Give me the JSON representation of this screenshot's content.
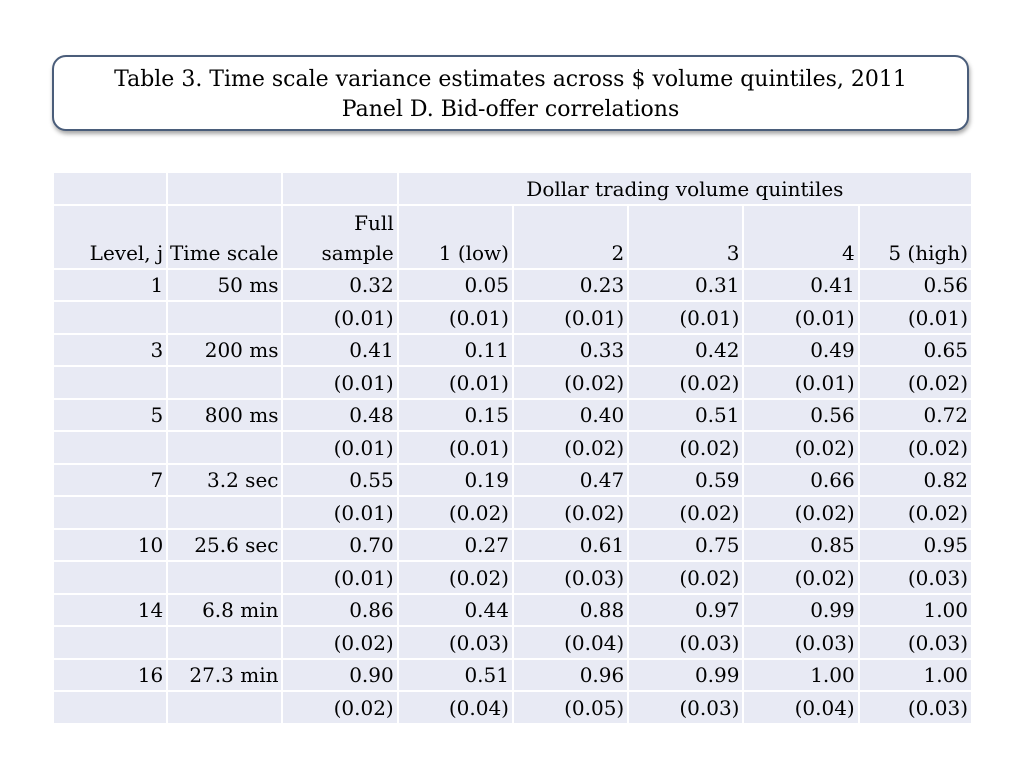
{
  "title": {
    "line1": "Table 3. Time scale variance estimates across $ volume quintiles, 2011",
    "line2": "Panel D. Bid-offer correlations"
  },
  "table": {
    "group_header": "Dollar trading volume quintiles",
    "columns": {
      "level": "Level, j",
      "time": "Time scale",
      "full": "Full sample",
      "q1": "1 (low)",
      "q2": "2",
      "q3": "3",
      "q4": "4",
      "q5": "5 (high)"
    },
    "rows": [
      {
        "level": "1",
        "time": "50 ms",
        "values": [
          "0.32",
          "0.05",
          "0.23",
          "0.31",
          "0.41",
          "0.56"
        ],
        "se": [
          "(0.01)",
          "(0.01)",
          "(0.01)",
          "(0.01)",
          "(0.01)",
          "(0.01)"
        ]
      },
      {
        "level": "3",
        "time": "200 ms",
        "values": [
          "0.41",
          "0.11",
          "0.33",
          "0.42",
          "0.49",
          "0.65"
        ],
        "se": [
          "(0.01)",
          "(0.01)",
          "(0.02)",
          "(0.02)",
          "(0.01)",
          "(0.02)"
        ]
      },
      {
        "level": "5",
        "time": "800 ms",
        "values": [
          "0.48",
          "0.15",
          "0.40",
          "0.51",
          "0.56",
          "0.72"
        ],
        "se": [
          "(0.01)",
          "(0.01)",
          "(0.02)",
          "(0.02)",
          "(0.02)",
          "(0.02)"
        ]
      },
      {
        "level": "7",
        "time": "3.2 sec",
        "values": [
          "0.55",
          "0.19",
          "0.47",
          "0.59",
          "0.66",
          "0.82"
        ],
        "se": [
          "(0.01)",
          "(0.02)",
          "(0.02)",
          "(0.02)",
          "(0.02)",
          "(0.02)"
        ]
      },
      {
        "level": "10",
        "time": "25.6 sec",
        "values": [
          "0.70",
          "0.27",
          "0.61",
          "0.75",
          "0.85",
          "0.95"
        ],
        "se": [
          "(0.01)",
          "(0.02)",
          "(0.03)",
          "(0.02)",
          "(0.02)",
          "(0.03)"
        ]
      },
      {
        "level": "14",
        "time": "6.8 min",
        "values": [
          "0.86",
          "0.44",
          "0.88",
          "0.97",
          "0.99",
          "1.00"
        ],
        "se": [
          "(0.02)",
          "(0.03)",
          "(0.04)",
          "(0.03)",
          "(0.03)",
          "(0.03)"
        ]
      },
      {
        "level": "16",
        "time": "27.3 min",
        "values": [
          "0.90",
          "0.51",
          "0.96",
          "0.99",
          "1.00",
          "1.00"
        ],
        "se": [
          "(0.02)",
          "(0.04)",
          "(0.05)",
          "(0.03)",
          "(0.04)",
          "(0.03)"
        ]
      }
    ]
  }
}
